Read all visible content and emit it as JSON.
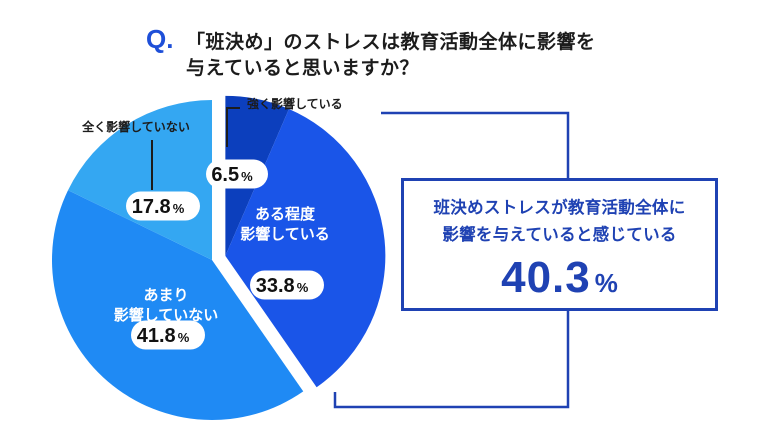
{
  "question": {
    "marker": "Q.",
    "line1": "「班決め」のストレスは教育活動全体に影響を",
    "line2": "与えていると思いますか？"
  },
  "result": {
    "line1": "班決めストレスが教育活動全体に",
    "line2": "影響を与えていると感じている",
    "value": "40.3",
    "unit": "%"
  },
  "colors": {
    "accent": "#1f42b3",
    "question_marker": "#1e4fd8",
    "slices": [
      "#0c3fbd",
      "#1a55e8",
      "#1f8af4",
      "#34a7f2"
    ]
  },
  "chart_data": {
    "type": "pie",
    "title": "",
    "unit": "%",
    "start": "12 o'clock",
    "direction": "clockwise",
    "slices": [
      {
        "label": "強く影響している",
        "value": 6.5,
        "label_lines": [
          "強く影響している"
        ],
        "display": "6.5"
      },
      {
        "label": "ある程度影響している",
        "value": 33.8,
        "label_lines": [
          "ある程度",
          "影響している"
        ],
        "display": "33.8"
      },
      {
        "label": "あまり影響していない",
        "value": 41.8,
        "label_lines": [
          "あまり",
          "影響していない"
        ],
        "display": "41.8"
      },
      {
        "label": "全く影響していない",
        "value": 17.8,
        "label_lines": [
          "全く影響していない"
        ],
        "display": "17.8"
      }
    ]
  }
}
